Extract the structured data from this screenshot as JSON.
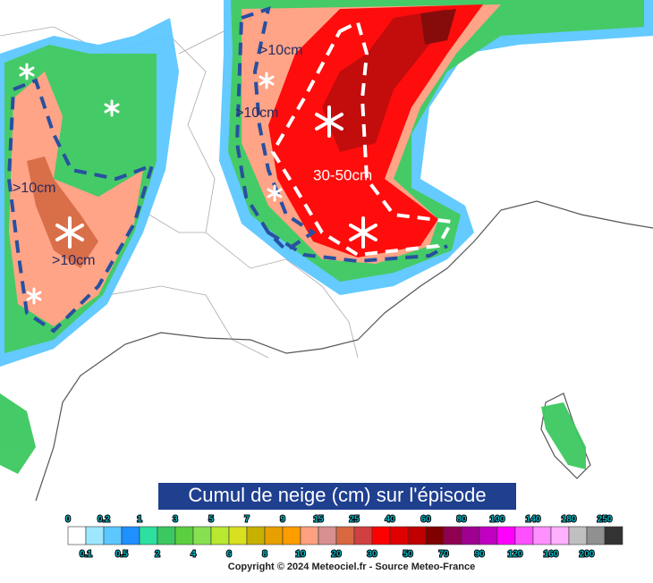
{
  "title": "Cumul de neige (cm) sur l'épisode",
  "annotations": [
    {
      "text": ">10cm"
    },
    {
      "text": ">10cm"
    },
    {
      "text": ">10cm"
    },
    {
      "text": ">10cm"
    },
    {
      "text": "30-50cm"
    }
  ],
  "legend": {
    "top_labels": [
      "0",
      "0.2",
      "1",
      "3",
      "5",
      "7",
      "9",
      "15",
      "25",
      "40",
      "60",
      "80",
      "100",
      "140",
      "180",
      "250"
    ],
    "bottom_labels": [
      "0.1",
      "0.5",
      "2",
      "4",
      "6",
      "8",
      "10",
      "20",
      "30",
      "50",
      "70",
      "90",
      "120",
      "160",
      "200"
    ],
    "colors": [
      "#ffffff",
      "#9ee8ff",
      "#5cc8ff",
      "#1e90ff",
      "#2de0a0",
      "#3cc860",
      "#5ad040",
      "#88e050",
      "#b8e830",
      "#d8e020",
      "#c8b000",
      "#e8a000",
      "#ff9c00",
      "#ffa080",
      "#d89090",
      "#d86840",
      "#d04040",
      "#ff0000",
      "#e00000",
      "#c00000",
      "#800000",
      "#900050",
      "#a00090",
      "#c000c0",
      "#ff00ff",
      "#ff50ff",
      "#ff90ff",
      "#ffb0ff",
      "#c0c0c0",
      "#909090",
      "#333333"
    ]
  },
  "copyright": "Copyright © 2024 Meteociel.fr - Source Meteo-France"
}
